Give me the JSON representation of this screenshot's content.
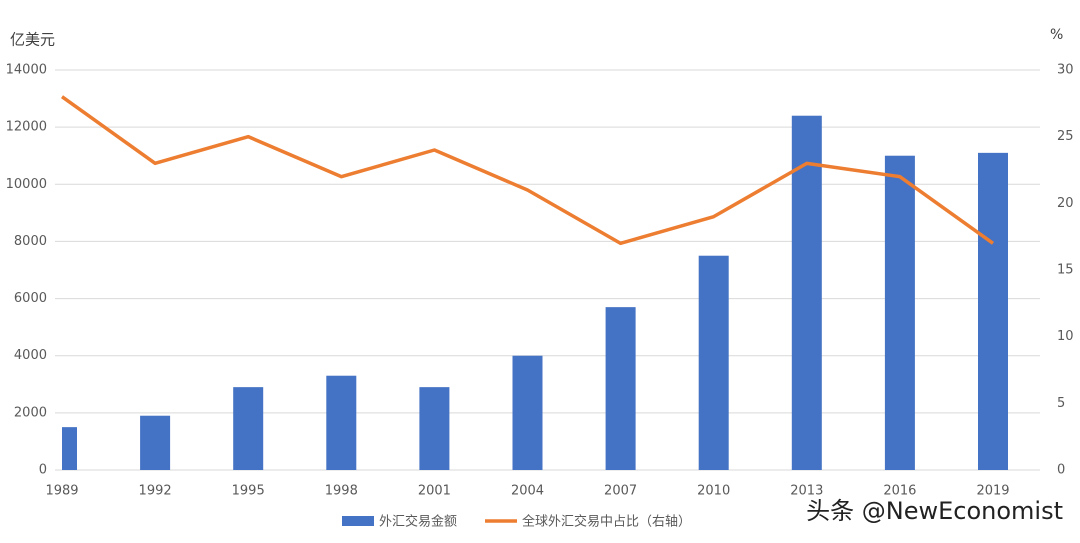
{
  "chart_data": {
    "type": "bar-line",
    "y_label": "亿美元",
    "y2_label": "%",
    "categories": [
      "1989",
      "1992",
      "1995",
      "1998",
      "2001",
      "2004",
      "2007",
      "2010",
      "2013",
      "2016",
      "2019"
    ],
    "series": [
      {
        "name": "外汇交易金额",
        "type": "bar",
        "color": "#4472c4",
        "values": [
          1500,
          1900,
          2900,
          3300,
          2900,
          4000,
          5700,
          7500,
          12400,
          11000,
          11100
        ]
      },
      {
        "name": "全球外汇交易中占比（右轴）",
        "type": "line",
        "axis": "y2",
        "color": "#ed7d31",
        "values": [
          28,
          23,
          25,
          22,
          24,
          21,
          17,
          19,
          23,
          22,
          17
        ]
      }
    ],
    "ylim": [
      0,
      14000
    ],
    "yticks": [
      0,
      2000,
      4000,
      6000,
      8000,
      10000,
      12000,
      14000
    ],
    "y2lim": [
      0,
      30
    ],
    "y2ticks": [
      0,
      5,
      10,
      15,
      20,
      25,
      30
    ],
    "grid": true,
    "legend": "bottom",
    "watermark": "头条 @NewEconomist"
  }
}
